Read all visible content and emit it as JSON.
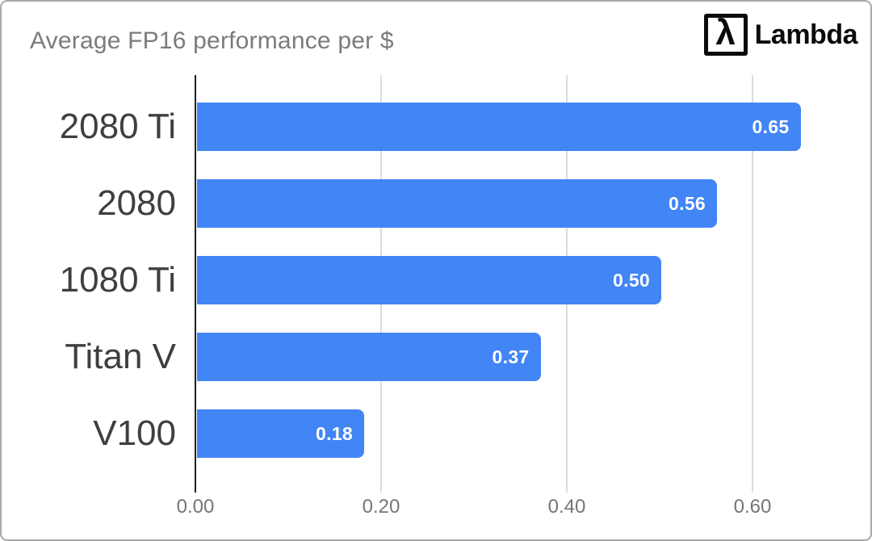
{
  "header": {
    "title": "Average FP16 performance per $",
    "logo": {
      "symbol": "λ",
      "text": "Lambda"
    }
  },
  "chart_data": {
    "type": "bar",
    "orientation": "horizontal",
    "title": "Average FP16 performance per $",
    "categories": [
      "2080 Ti",
      "2080",
      "1080 Ti",
      "Titan V",
      "V100"
    ],
    "values": [
      0.65,
      0.56,
      0.5,
      0.37,
      0.18
    ],
    "value_labels": [
      "0.65",
      "0.56",
      "0.50",
      "0.37",
      "0.18"
    ],
    "xlabel": "",
    "ylabel": "",
    "xlim": [
      0,
      0.7
    ],
    "x_ticks": {
      "labels": [
        "0.00",
        "0.20",
        "0.40",
        "0.60"
      ],
      "values": [
        0,
        0.2,
        0.4,
        0.6
      ]
    },
    "grid": true,
    "legend": "none",
    "bar_color": "#4285f4",
    "value_label_color": "#ffffff"
  },
  "colors": {
    "background": "#ffffff",
    "frame_border": "#a9a9a9",
    "title_text": "#7b7b7b",
    "category_text": "#3f3f3f",
    "axis_line": "#212121",
    "gridline": "#dcdcdc",
    "tick_text": "#757575",
    "logo": "#0b0b0b"
  }
}
